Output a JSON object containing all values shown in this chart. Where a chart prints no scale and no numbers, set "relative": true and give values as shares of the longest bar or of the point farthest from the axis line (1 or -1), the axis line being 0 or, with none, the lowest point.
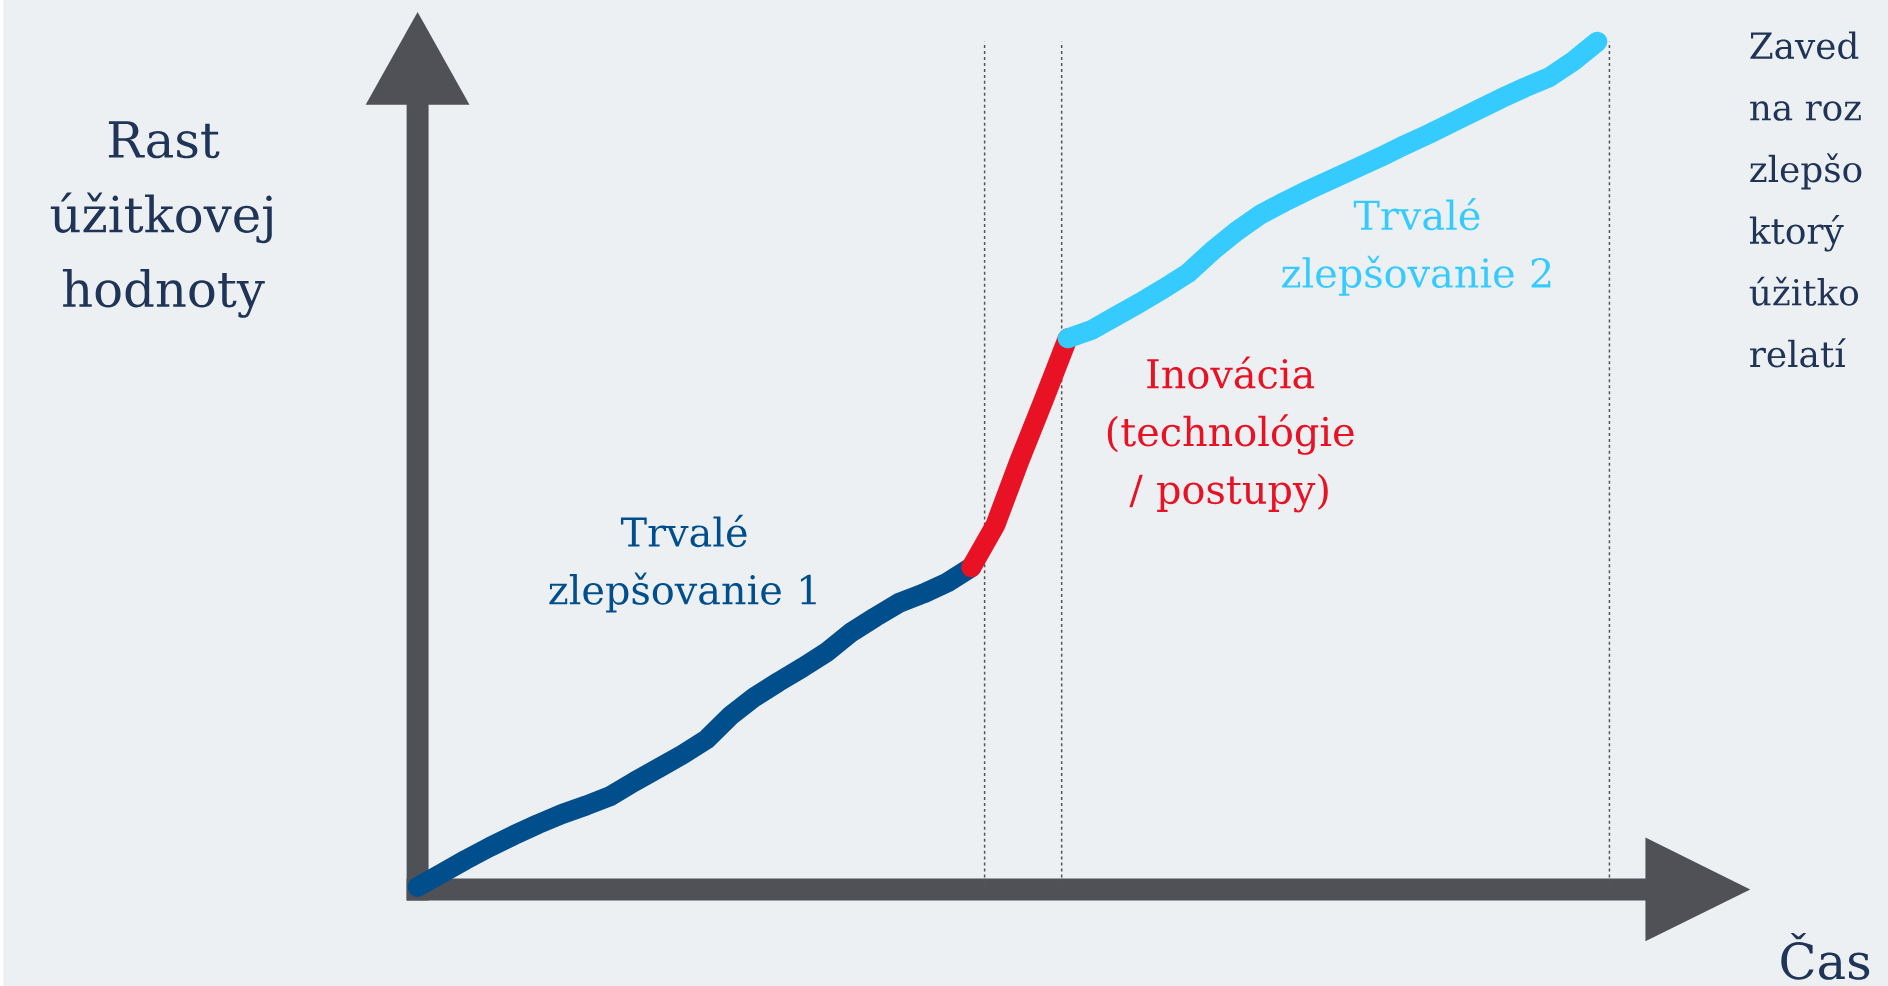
{
  "chart_data": {
    "type": "line",
    "relative": true,
    "ylabel": "Rast úžitkovej hodnoty",
    "xlabel": "Čas",
    "legend": false,
    "marker": "none",
    "line_style": "solid",
    "categories": [
      null,
      null,
      null,
      null,
      null,
      null,
      null,
      null,
      null,
      null,
      null,
      null,
      null,
      null,
      null,
      null,
      null,
      null,
      null,
      null,
      null,
      null,
      null,
      null,
      null,
      null,
      null,
      null,
      null,
      null,
      null,
      null,
      null,
      null,
      null,
      null,
      null,
      null,
      null,
      null,
      null,
      null,
      null,
      null,
      null,
      null,
      null,
      null,
      null,
      null
    ],
    "series": [
      {
        "name": "Trvalé zlepšovanie 1",
        "color": "#004f8c",
        "values": [
          0.003,
          0.019,
          0.035,
          0.05,
          0.064,
          0.077,
          0.089,
          0.099,
          0.11,
          0.127,
          0.143,
          0.159,
          0.177,
          0.205,
          0.227,
          0.245,
          0.262,
          0.28,
          0.303,
          0.321,
          0.338,
          0.349,
          0.362,
          0.38,
          null,
          null,
          null,
          null,
          null,
          null,
          null,
          null,
          null,
          null,
          null,
          null,
          null,
          null,
          null,
          null,
          null,
          null,
          null,
          null,
          null,
          null,
          null,
          null,
          null,
          null
        ]
      },
      {
        "name": "Inovácia (technológie / postupy)",
        "color": "#e81224",
        "values": [
          null,
          null,
          null,
          null,
          null,
          null,
          null,
          null,
          null,
          null,
          null,
          null,
          null,
          null,
          null,
          null,
          null,
          null,
          null,
          null,
          null,
          null,
          null,
          0.38,
          0.43,
          0.506,
          0.577,
          0.65,
          null,
          null,
          null,
          null,
          null,
          null,
          null,
          null,
          null,
          null,
          null,
          null,
          null,
          null,
          null,
          null,
          null,
          null,
          null,
          null,
          null,
          null
        ]
      },
      {
        "name": "Trvalé zlepšovanie 2",
        "color": "#36cbff",
        "values": [
          null,
          null,
          null,
          null,
          null,
          null,
          null,
          null,
          null,
          null,
          null,
          null,
          null,
          null,
          null,
          null,
          null,
          null,
          null,
          null,
          null,
          null,
          null,
          null,
          null,
          null,
          null,
          0.65,
          0.66,
          0.676,
          0.692,
          0.709,
          0.727,
          0.753,
          0.776,
          0.796,
          0.811,
          0.825,
          0.838,
          0.851,
          0.864,
          0.878,
          0.891,
          0.905,
          0.919,
          0.933,
          0.946,
          0.958,
          0.977,
          1.0
        ]
      }
    ],
    "annotations": [
      "Zaved",
      "na roz",
      "zlepšo",
      "ktorý",
      "úžitko",
      "relatí"
    ]
  }
}
